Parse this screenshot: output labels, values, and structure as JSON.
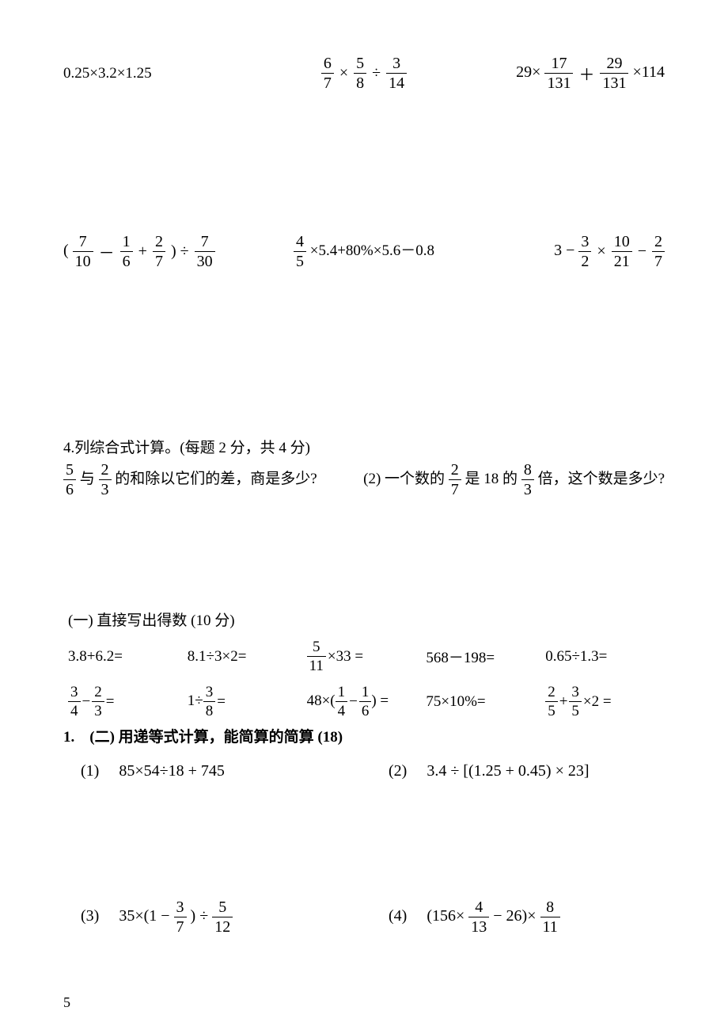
{
  "colors": {
    "text": "#000000",
    "bg": "#ffffff"
  },
  "fonts": {
    "math": "Times New Roman",
    "cn": "SimSun",
    "base_size_pt": 15,
    "math_size_pt": 15
  },
  "row1": {
    "c1": "0.25×3.2×1.25",
    "c2": {
      "f1": {
        "n": "6",
        "d": "7"
      },
      "op1": "×",
      "f2": {
        "n": "5",
        "d": "8"
      },
      "op2": "÷",
      "f3": {
        "n": "3",
        "d": "14"
      }
    },
    "c3": {
      "a": "29×",
      "f1": {
        "n": "17",
        "d": "131"
      },
      "op": "＋",
      "f2": {
        "n": "29",
        "d": "131"
      },
      "b": "×114"
    }
  },
  "row2": {
    "c1": {
      "lp": "(",
      "f1": {
        "n": "7",
        "d": "10"
      },
      "op1": "－",
      "f2": {
        "n": "1",
        "d": "6"
      },
      "op2": "+",
      "f3": {
        "n": "2",
        "d": "7"
      },
      "op3": ") ÷",
      "f4": {
        "n": "7",
        "d": "30"
      }
    },
    "c2": {
      "f1": {
        "n": "4",
        "d": "5"
      },
      "rest": "×5.4+80%×5.6－0.8"
    },
    "c3": {
      "a": "3 −",
      "f1": {
        "n": "3",
        "d": "2"
      },
      "op1": "×",
      "f2": {
        "n": "10",
        "d": "21"
      },
      "op2": "−",
      "f3": {
        "n": "2",
        "d": "7"
      }
    }
  },
  "section4": {
    "heading": "4.列综合式计算。(每题 2 分，共 4 分)",
    "q1": {
      "f1": {
        "n": "5",
        "d": "6"
      },
      "mid1": "与",
      "f2": {
        "n": "2",
        "d": "3"
      },
      "tail": "的和除以它们的差，商是多少?"
    },
    "q2": {
      "lead": "(2) 一个数的",
      "f1": {
        "n": "2",
        "d": "7"
      },
      "mid": "是 18 的",
      "f2": {
        "n": "8",
        "d": "3"
      },
      "tail": " 倍，这个数是多少?"
    }
  },
  "sectionA": {
    "heading": "(一) 直接写出得数 (10 分)",
    "items": [
      {
        "type": "plain",
        "text": "3.8+6.2="
      },
      {
        "type": "plain",
        "text": "8.1÷3×2="
      },
      {
        "type": "fracexpr",
        "f": {
          "n": "5",
          "d": "11"
        },
        "rest": "×33 ="
      },
      {
        "type": "plain",
        "text": "568－198="
      },
      {
        "type": "plain",
        "text": "0.65÷1.3="
      },
      {
        "type": "twofrac",
        "f1": {
          "n": "3",
          "d": "4"
        },
        "op": "−",
        "f2": {
          "n": "2",
          "d": "3"
        },
        "tail": "="
      },
      {
        "type": "onefrac",
        "pre": "1÷",
        "f": {
          "n": "3",
          "d": "8"
        },
        "tail": "="
      },
      {
        "type": "paren",
        "pre": "48×(",
        "f1": {
          "n": "1",
          "d": "4"
        },
        "op": "−",
        "f2": {
          "n": "1",
          "d": "6"
        },
        "tail": ") ="
      },
      {
        "type": "plain",
        "text": "75×10%="
      },
      {
        "type": "twofrac2",
        "f1": {
          "n": "2",
          "d": "5"
        },
        "op": "+",
        "f2": {
          "n": "3",
          "d": "5"
        },
        "tail": "×2 ="
      }
    ]
  },
  "sectionB": {
    "lead": "1.　(二) ",
    "heading_bold": "用递等式计算，能简算的简算 (18)",
    "q1": {
      "label": "(1)　",
      "text": "85×54÷18 + 745"
    },
    "q2": {
      "label": "(2)　",
      "text": "3.4 ÷ [(1.25 + 0.45) × 23]"
    },
    "q3": {
      "label": "(3)　",
      "pre": "35×(1 − ",
      "f1": {
        "n": "3",
        "d": "7"
      },
      "mid": ") ÷",
      "f2": {
        "n": "5",
        "d": "12"
      }
    },
    "q4": {
      "label": "(4)　",
      "pre": "(156×",
      "f1": {
        "n": "4",
        "d": "13"
      },
      "mid": " − 26)×",
      "f2": {
        "n": "8",
        "d": "11"
      }
    }
  },
  "page_number": "5"
}
